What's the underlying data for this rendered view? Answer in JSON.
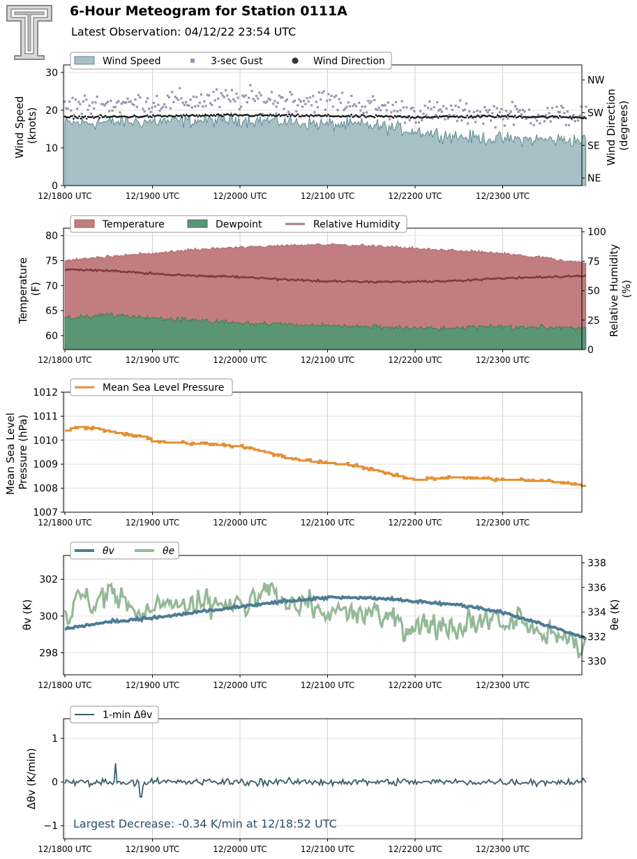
{
  "header": {
    "title": "6-Hour Meteogram for Station 0111A",
    "subtitle": "Latest Observation: 04/12/22 23:54 UTC"
  },
  "colors": {
    "wind_fill": "#a7c0c5",
    "wind_edge": "#5e8a8f",
    "gust": "#9e92ad",
    "direction": "#1e1e1e",
    "temperature": "#c17d7f",
    "temperature_edge": "#b06b6d",
    "dewpoint": "#5a9674",
    "rh": "#7d3c3f",
    "pressure": "#e38f34",
    "theta_v": "#4d7c93",
    "theta_e": "#94b997",
    "dtheta": "#3b5e6c",
    "annotation": "#2f506a"
  },
  "chart_data": [
    {
      "id": "wind",
      "type": "area",
      "x_ticks": [
        "12/1800 UTC",
        "12/1900 UTC",
        "12/2000 UTC",
        "12/2100 UTC",
        "12/2200 UTC",
        "12/2300 UTC"
      ],
      "ylabel": "Wind Speed\n(knots)",
      "ylim": [
        0,
        32
      ],
      "y_ticks": [
        0,
        10,
        20,
        30
      ],
      "y2label": "Wind Direction\n(degrees)",
      "y2_ticks": [
        "NE",
        "SE",
        "SW",
        "NW"
      ],
      "legend": [
        "Wind Speed",
        "3-sec Gust",
        "Wind Direction"
      ],
      "legend_placement": "top-left",
      "grid": true,
      "series": [
        {
          "name": "Wind Speed",
          "kind": "area",
          "knots_x": [
            0,
            0.5,
            1,
            1.5,
            2,
            2.5,
            3,
            3.5,
            4,
            4.5,
            5,
            5.5,
            5.95
          ],
          "knots_y": [
            16.5,
            16.8,
            17,
            17.2,
            17.5,
            17,
            16.2,
            16,
            14.5,
            13,
            12.3,
            12.2,
            12
          ]
        },
        {
          "name": "3-sec Gust",
          "kind": "scatter",
          "knots_x": [
            0,
            1,
            2,
            3,
            4,
            5,
            5.95
          ],
          "knots_y": [
            21,
            22,
            23,
            22.5,
            19.5,
            19,
            18.5
          ]
        },
        {
          "name": "Wind Direction",
          "kind": "scatter",
          "knots_x": [
            0,
            1,
            2,
            3,
            4,
            5,
            5.95
          ],
          "knots_y": [
            212,
            215,
            218,
            216,
            213,
            215,
            212
          ]
        }
      ]
    },
    {
      "id": "temp",
      "type": "area",
      "x_ticks": [
        "12/1800 UTC",
        "12/1900 UTC",
        "12/2000 UTC",
        "12/2100 UTC",
        "12/2200 UTC",
        "12/2300 UTC"
      ],
      "ylabel": "Temperature\n(F)",
      "ylim": [
        57.2,
        81.5
      ],
      "y_ticks": [
        60,
        65,
        70,
        75,
        80
      ],
      "y2label": "Relative Humidity\n(%)",
      "y2lim": [
        0,
        103
      ],
      "y2_ticks": [
        0,
        25,
        50,
        75,
        100
      ],
      "legend": [
        "Temperature",
        "Dewpoint",
        "Relative Humidity"
      ],
      "legend_placement": "top-left",
      "grid": true,
      "series": [
        {
          "name": "Temperature",
          "kind": "area",
          "knots_x": [
            0,
            0.5,
            1,
            1.5,
            2,
            2.5,
            3,
            3.5,
            4,
            4.5,
            5,
            5.5,
            5.95
          ],
          "knots_y": [
            75,
            75.8,
            76.5,
            77.3,
            77.8,
            78,
            78.2,
            78,
            77.5,
            77,
            76.5,
            75.5,
            74.5
          ]
        },
        {
          "name": "Dewpoint",
          "kind": "area",
          "knots_x": [
            0,
            0.5,
            1,
            1.5,
            2,
            2.5,
            3,
            3.5,
            4,
            4.5,
            5,
            5.5,
            5.95
          ],
          "knots_y": [
            63.5,
            64.2,
            63.5,
            63,
            62.6,
            62.3,
            62,
            61.8,
            61.5,
            61.5,
            61.8,
            61.7,
            61.4
          ]
        },
        {
          "name": "Relative Humidity",
          "kind": "line",
          "knots_x": [
            0,
            0.5,
            1,
            1.5,
            2,
            2.5,
            3,
            3.5,
            4,
            4.5,
            5,
            5.5,
            5.95
          ],
          "knots_y": [
            68,
            67,
            64.5,
            62.5,
            61.5,
            59.5,
            58,
            57.5,
            57.5,
            58.5,
            60.5,
            61.5,
            62.5
          ]
        }
      ]
    },
    {
      "id": "pres",
      "type": "line",
      "x_ticks": [
        "12/1800 UTC",
        "12/1900 UTC",
        "12/2000 UTC",
        "12/2100 UTC",
        "12/2200 UTC",
        "12/2300 UTC"
      ],
      "ylabel": "Mean Sea Level\nPressure (hPa)",
      "ylim": [
        1007,
        1012
      ],
      "y_ticks": [
        1007,
        1008,
        1009,
        1010,
        1011,
        1012
      ],
      "legend": [
        "Mean Sea Level Pressure"
      ],
      "legend_placement": "top-left",
      "grid": true,
      "series": [
        {
          "name": "Mean Sea Level Pressure",
          "kind": "step",
          "knots_x": [
            0,
            0.1,
            0.35,
            0.6,
            0.9,
            1,
            1.5,
            2,
            2.3,
            2.6,
            3,
            3.3,
            3.6,
            4,
            4.5,
            5,
            5.5,
            5.95
          ],
          "knots_y": [
            1010.4,
            1010.55,
            1010.5,
            1010.3,
            1010.15,
            1009.95,
            1009.85,
            1009.75,
            1009.5,
            1009.2,
            1009.05,
            1008.95,
            1008.7,
            1008.35,
            1008.45,
            1008.35,
            1008.3,
            1008.1
          ]
        }
      ]
    },
    {
      "id": "theta",
      "type": "line",
      "x_ticks": [
        "12/1800 UTC",
        "12/1900 UTC",
        "12/2000 UTC",
        "12/2100 UTC",
        "12/2200 UTC",
        "12/2300 UTC"
      ],
      "ylabel": "θv (K)",
      "ylim": [
        296.8,
        303.3
      ],
      "y_ticks": [
        298,
        300,
        302
      ],
      "y2label": "θe (K)",
      "y2lim": [
        328.9,
        338.6
      ],
      "y2_ticks": [
        330,
        332,
        334,
        336,
        338
      ],
      "legend": [
        "θv",
        "θe"
      ],
      "legend_placement": "top-left",
      "grid": true,
      "series": [
        {
          "name": "θv",
          "kind": "line",
          "knots_x": [
            0,
            0.5,
            1,
            1.5,
            2,
            2.5,
            3,
            3.5,
            4,
            4.5,
            5,
            5.5,
            5.95
          ],
          "knots_y": [
            299.3,
            299.7,
            299.9,
            300.2,
            300.5,
            300.8,
            301.0,
            301.0,
            300.8,
            300.6,
            300.2,
            299.5,
            298.8
          ]
        },
        {
          "name": "θe",
          "kind": "line",
          "knots_x": [
            0,
            0.5,
            1,
            1.5,
            2,
            2.5,
            3,
            3.5,
            4,
            4.5,
            5,
            5.5,
            5.95
          ],
          "knots_y": [
            334.5,
            335,
            334,
            334.5,
            334.5,
            335.5,
            334,
            333.5,
            333,
            333.5,
            333.5,
            332,
            331
          ]
        }
      ]
    },
    {
      "id": "dtheta",
      "type": "line",
      "x_ticks": [
        "12/1800 UTC",
        "12/1900 UTC",
        "12/2000 UTC",
        "12/2100 UTC",
        "12/2200 UTC",
        "12/2300 UTC"
      ],
      "ylabel": "Δθv (K/min)",
      "ylim": [
        -1.3,
        1.45
      ],
      "y_ticks": [
        -1,
        0,
        1
      ],
      "legend": [
        "1-min Δθv"
      ],
      "legend_placement": "top-left",
      "grid": true,
      "annotation": "Largest Decrease: -0.34 K/min at 12/18:52 UTC",
      "series": [
        {
          "name": "1-min Δθv",
          "kind": "line",
          "knots_x": [
            0,
            2,
            3,
            4,
            5,
            5.95
          ],
          "knots_y": [
            0,
            0,
            0,
            0,
            0,
            0
          ]
        }
      ]
    }
  ]
}
